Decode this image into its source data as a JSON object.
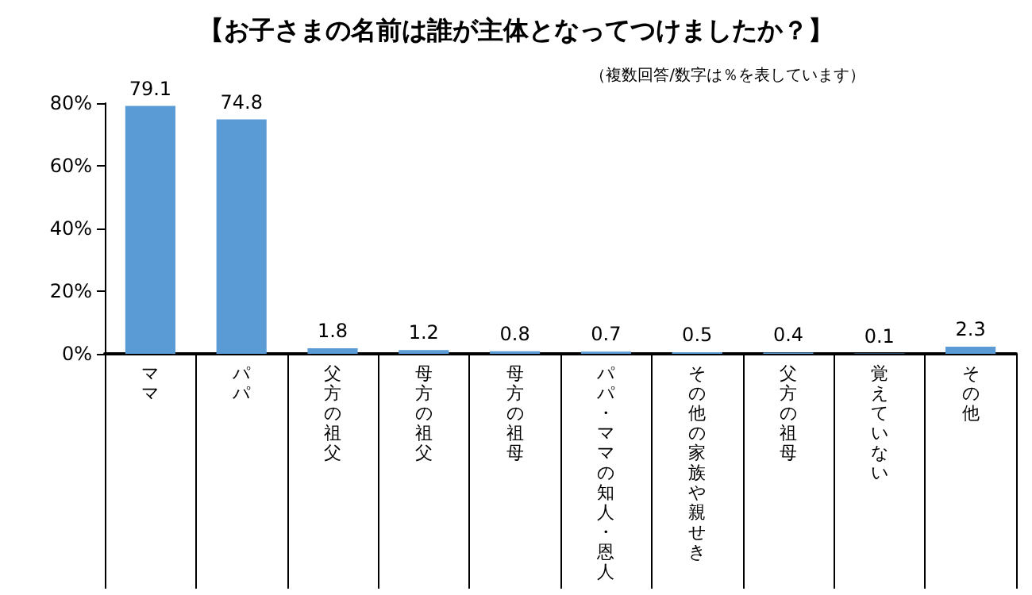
{
  "chart_data": {
    "type": "bar",
    "title": "【お子さまの名前は誰が主体となってつけましたか？】",
    "subtitle": "（複数回答/数字は％を表しています）",
    "categories": [
      "ママ",
      "パパ",
      "父方の祖父",
      "母方の祖父",
      "母方の祖母",
      "パパ・ママの知人・恩人",
      "その他の家族や親せき",
      "父方の祖母",
      "覚えていない",
      "その他"
    ],
    "values": [
      79.1,
      74.8,
      1.8,
      1.2,
      0.8,
      0.7,
      0.5,
      0.4,
      0.1,
      2.3
    ],
    "color": "#5b9bd5",
    "ylim": [
      0,
      80
    ],
    "yticks": [
      {
        "value": 0,
        "label": "0%"
      },
      {
        "value": 20,
        "label": "20%"
      },
      {
        "value": 40,
        "label": "40%"
      },
      {
        "value": 60,
        "label": "60%"
      },
      {
        "value": 80,
        "label": "80%"
      }
    ],
    "grid": false,
    "data_labels": true
  }
}
